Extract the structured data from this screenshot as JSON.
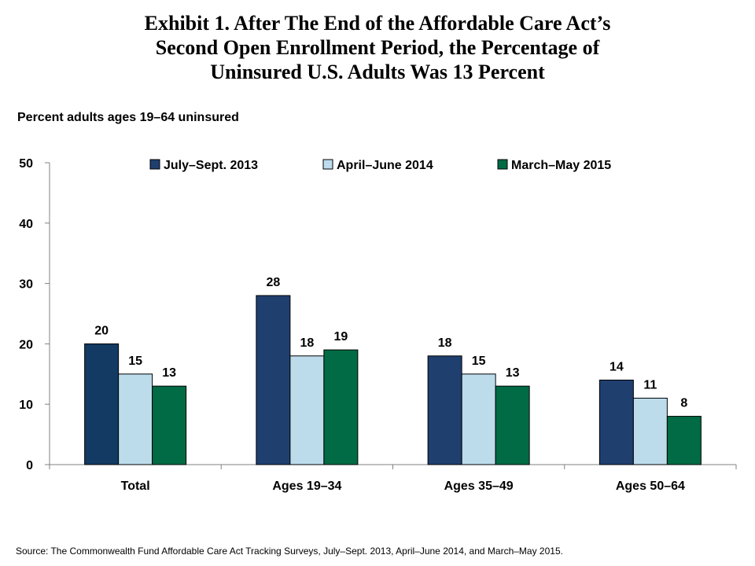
{
  "title": {
    "line1": "Exhibit 1. After The End of the Affordable Care Act’s",
    "line2": "Second Open Enrollment Period, the Percentage of",
    "line3": "Uninsured U.S. Adults Was 13 Percent"
  },
  "source": "Source: The Commonwealth Fund Affordable Care Act Tracking Surveys, July–Sept. 2013, April–June 2014, and March–May 2015.",
  "chart_data": {
    "type": "bar",
    "title": "Exhibit 1. After The End of the Affordable Care Act’s Second Open Enrollment Period, the Percentage of Uninsured U.S. Adults Was 13 Percent",
    "ylabel": "Percent adults ages 19–64 uninsured",
    "xlabel": "",
    "ylim": [
      0,
      50
    ],
    "yticks": [
      "0",
      "10",
      "20",
      "30",
      "40",
      "50"
    ],
    "categories": [
      "Total",
      "Ages 19–34",
      "Ages 35–49",
      "Ages 50–64"
    ],
    "legend_position": "top",
    "series": [
      {
        "name": "July–Sept. 2013",
        "values": [
          20,
          28,
          18,
          14
        ],
        "labels": [
          "20",
          "28",
          "18",
          "14"
        ],
        "color": "#1f3f6f",
        "first_color": "#123a63"
      },
      {
        "name": "April–June 2014",
        "values": [
          15,
          18,
          15,
          11
        ],
        "labels": [
          "15",
          "18",
          "15",
          "11"
        ],
        "color": "#bcdcec"
      },
      {
        "name": "March–May 2015",
        "values": [
          13,
          19,
          13,
          8
        ],
        "labels": [
          "13",
          "19",
          "13",
          "8"
        ],
        "color": "#006b44"
      }
    ]
  }
}
